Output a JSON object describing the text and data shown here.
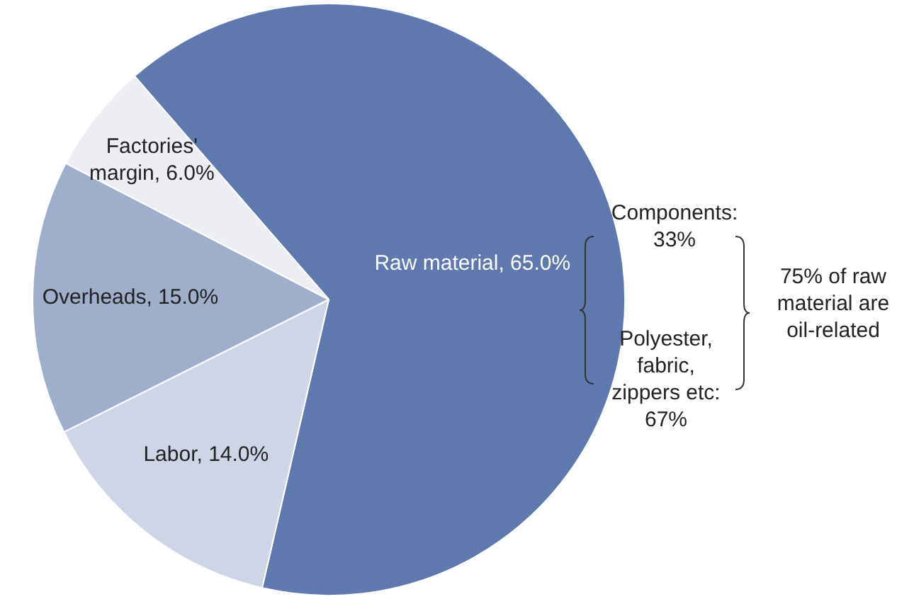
{
  "chart_data": {
    "type": "pie",
    "categories": [
      "Raw material",
      "Labor",
      "Overheads",
      "Factories' margin"
    ],
    "values": [
      65.0,
      14.0,
      15.0,
      6.0
    ],
    "value_labels": [
      "65.0%",
      "14.0%",
      "15.0%",
      "6.0%"
    ],
    "colors": [
      "#5f78ad",
      "#cdd5e6",
      "#9eaecb",
      "#eceef4"
    ],
    "legend": false,
    "annotations": [
      "Components: 33%",
      "Polyester, fabric, zippers etc: 67%",
      "75% of raw material are oil-related"
    ]
  }
}
